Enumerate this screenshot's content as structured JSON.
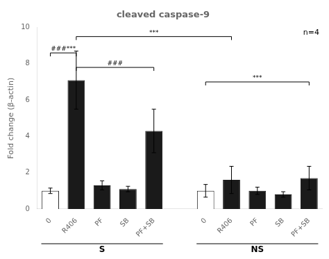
{
  "chart_data": {
    "type": "bar",
    "title": "cleaved caspase-9",
    "categories": [
      "0",
      "R406",
      "PF",
      "SB",
      "PF+SB",
      null,
      "0",
      "R406",
      "PF",
      "SB",
      "PF+SB"
    ],
    "values": [
      1.0,
      7.1,
      1.3,
      1.1,
      4.3,
      null,
      1.0,
      1.6,
      1.0,
      0.8,
      1.7
    ],
    "errors": [
      0.15,
      1.6,
      0.25,
      0.15,
      1.2,
      null,
      0.35,
      0.75,
      0.2,
      0.15,
      0.65
    ],
    "colors": [
      "white",
      "#1a1a1a",
      "#1a1a1a",
      "#1a1a1a",
      "#1a1a1a",
      null,
      "white",
      "#1a1a1a",
      "#1a1a1a",
      "#1a1a1a",
      "#1a1a1a"
    ],
    "ylabel": "Fold change (β-actin)",
    "ylim": [
      0,
      10
    ],
    "yticks": [
      0,
      2,
      4,
      6,
      8,
      10
    ],
    "grid": false,
    "annotations": [
      "n=4"
    ],
    "groups": [
      {
        "label": "S",
        "start": 0,
        "end": 4
      },
      {
        "label": "NS",
        "start": 6,
        "end": 10
      }
    ],
    "brackets": [
      {
        "from": 1,
        "to": 7,
        "y": 9.5,
        "label": "***"
      },
      {
        "from": 0,
        "to": 1,
        "y": 8.6,
        "label": "###***"
      },
      {
        "from": 1,
        "to": 4,
        "y": 7.8,
        "label": "###"
      },
      {
        "from": 6,
        "to": 10,
        "y": 7.0,
        "label": "***"
      }
    ]
  }
}
